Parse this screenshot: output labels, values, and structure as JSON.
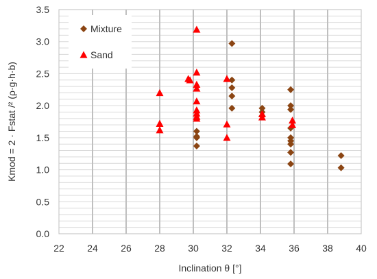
{
  "chart_data": {
    "type": "scatter",
    "xlabel": "Inclination θ [°]",
    "ylabel": "Kmod = 2 · Fstat /² (ρ·g·h·b)",
    "xlim": [
      22,
      40
    ],
    "ylim": [
      0.0,
      3.5
    ],
    "x_ticks": [
      "22",
      "24",
      "26",
      "28",
      "30",
      "32",
      "34",
      "36",
      "38",
      "40"
    ],
    "y_ticks": [
      "0.0",
      "0.5",
      "1.0",
      "1.5",
      "2.0",
      "2.5",
      "3.0",
      "3.5"
    ],
    "grid": "vertical major lines and horizontal minor lines",
    "legend_position": "top-left",
    "series": [
      {
        "name": "Mixture",
        "marker": "diamond",
        "color": "#8B4513",
        "points": [
          [
            30.2,
            1.6
          ],
          [
            30.2,
            1.52
          ],
          [
            30.2,
            1.5
          ],
          [
            30.2,
            1.37
          ],
          [
            32.3,
            2.97
          ],
          [
            32.3,
            2.4
          ],
          [
            32.3,
            2.28
          ],
          [
            32.3,
            2.15
          ],
          [
            32.3,
            1.96
          ],
          [
            34.1,
            1.96
          ],
          [
            34.1,
            1.9
          ],
          [
            34.1,
            1.84
          ],
          [
            35.8,
            2.25
          ],
          [
            35.8,
            2.0
          ],
          [
            35.8,
            1.94
          ],
          [
            35.8,
            1.65
          ],
          [
            35.8,
            1.5
          ],
          [
            35.8,
            1.45
          ],
          [
            35.8,
            1.4
          ],
          [
            35.8,
            1.27
          ],
          [
            35.8,
            1.09
          ],
          [
            38.8,
            1.22
          ],
          [
            38.8,
            1.03
          ]
        ]
      },
      {
        "name": "Sand",
        "marker": "triangle",
        "color": "#FF0000",
        "points": [
          [
            28.0,
            2.2
          ],
          [
            28.0,
            1.72
          ],
          [
            28.0,
            1.62
          ],
          [
            29.7,
            2.42
          ],
          [
            29.8,
            2.4
          ],
          [
            30.2,
            3.19
          ],
          [
            30.2,
            2.52
          ],
          [
            30.2,
            2.33
          ],
          [
            30.2,
            2.27
          ],
          [
            30.2,
            2.07
          ],
          [
            30.2,
            1.93
          ],
          [
            30.2,
            1.88
          ],
          [
            30.2,
            1.83
          ],
          [
            30.2,
            1.8
          ],
          [
            32.0,
            2.42
          ],
          [
            32.0,
            1.71
          ],
          [
            32.0,
            1.5
          ],
          [
            34.1,
            1.87
          ],
          [
            34.1,
            1.82
          ],
          [
            35.9,
            1.77
          ],
          [
            35.9,
            1.7
          ]
        ]
      }
    ]
  }
}
